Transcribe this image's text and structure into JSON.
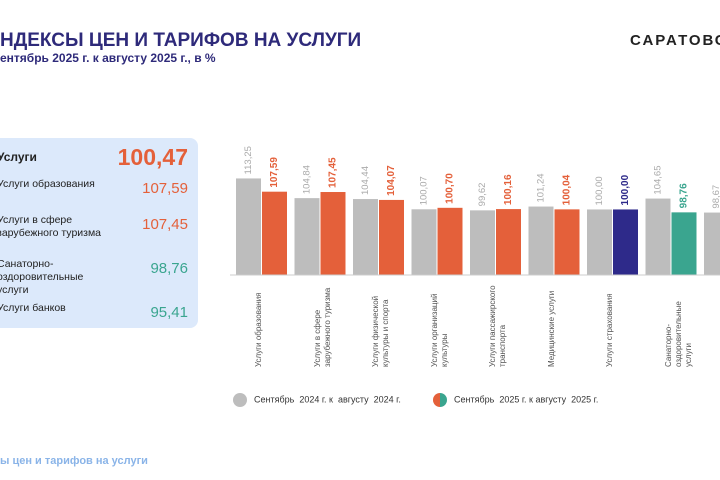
{
  "header": {
    "title": "НДЕКСЫ ЦЕН И ТАРИФОВ НА УСЛУГИ",
    "subtitle": "ентябрь 2025 г. к августу 2025 г., в %",
    "logo": "САРАТОВС"
  },
  "panel": {
    "rows": [
      {
        "label": "Услуги",
        "value": "100,47"
      },
      {
        "label": "Услуги образования",
        "value": "107,59"
      },
      {
        "label": "Услуги в сфере зарубежного туризма",
        "value": "107,45"
      },
      {
        "label": "Санаторно-оздоровительные услуги",
        "value": "98,76"
      },
      {
        "label": "Услуги банков",
        "value": "95,41"
      }
    ]
  },
  "chart_data": {
    "type": "bar",
    "categories": [
      "Услуги образования",
      "Услуги в сфере зарубежного туризма",
      "Услуги физической культуры и спорта",
      "Услуги организаций культуры",
      "Услуги пассажирского транспорта",
      "Медицинские услуги",
      "Услуги страхования",
      "Санаторно-оздоровительные услуги",
      null
    ],
    "ylim": [
      72,
      116
    ],
    "series": [
      {
        "name": "Сентябрь  2024 г. к  августу  2024 г.",
        "color": "#bdbdbd",
        "values": [
          113.25,
          104.84,
          104.44,
          100.07,
          99.62,
          101.24,
          100.0,
          104.65,
          98.67
        ],
        "value_labels": [
          "113,25",
          "104,84",
          "104,44",
          "100,07",
          "99,62",
          "101,24",
          "100,00",
          "104,65",
          "98,67"
        ]
      },
      {
        "name": "Сентябрь  2025 г. к августу  2025 г.",
        "colors": [
          "#e4603a",
          "#e4603a",
          "#e4603a",
          "#e4603a",
          "#e4603a",
          "#e4603a",
          "#2e2a8a",
          "#3aa58f",
          "#e4603a"
        ],
        "values": [
          107.59,
          107.45,
          104.07,
          100.7,
          100.16,
          100.04,
          100.0,
          98.76,
          null
        ],
        "value_labels": [
          "107,59",
          "107,45",
          "104,07",
          "100,70",
          "100,16",
          "100,04",
          "100,00",
          "98,76",
          null
        ]
      }
    ]
  },
  "footer": {
    "text": "ы цен и тарифов на услуги"
  }
}
